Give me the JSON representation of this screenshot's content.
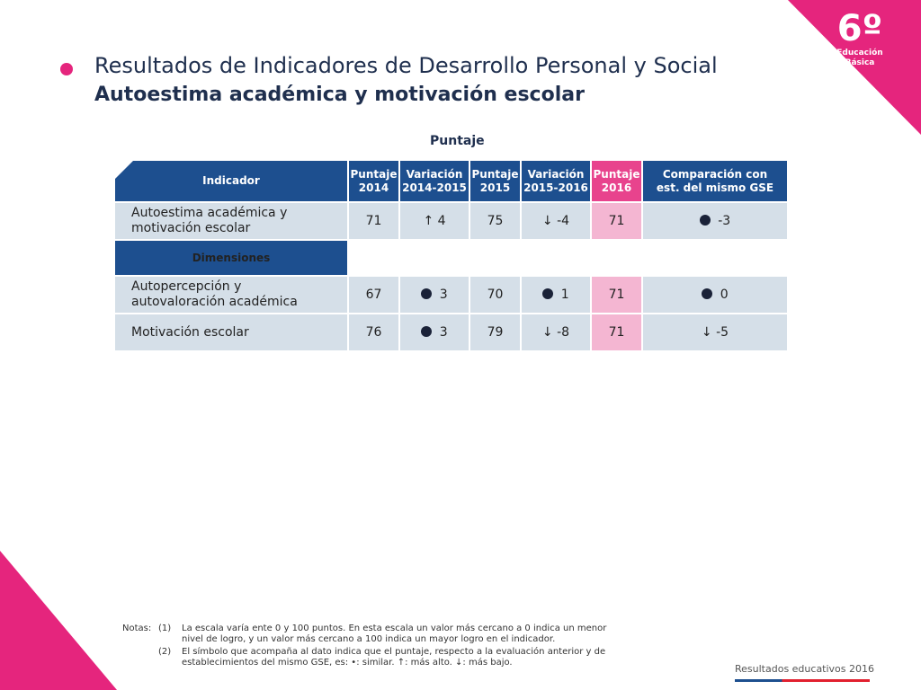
{
  "badge": {
    "grade": "6º",
    "level_line1": "Educación",
    "level_line2": "Básica"
  },
  "title": {
    "line1": "Resultados de Indicadores de Desarrollo Personal y Social",
    "line2": "Autoestima académica y motivación escolar"
  },
  "table": {
    "caption": "Puntaje",
    "headers": {
      "indicador": "Indicador",
      "p2014_a": "Puntaje",
      "p2014_b": "2014",
      "v1_a": "Variación",
      "v1_b": "2014-2015",
      "p2015_a": "Puntaje",
      "p2015_b": "2015",
      "v2_a": "Variación",
      "v2_b": "2015-2016",
      "p2016_a": "Puntaje",
      "p2016_b": "2016",
      "comp_a": "Comparación con",
      "comp_b": "est. del mismo GSE"
    },
    "main_row": {
      "label_a": "Autoestima académica y",
      "label_b": "motivación escolar",
      "p2014": "71",
      "v1_symbol": "↑",
      "v1": "4",
      "p2015": "75",
      "v2_symbol": "↓",
      "v2": "-4",
      "p2016": "71",
      "comp_symbol": "dot",
      "comp": "-3"
    },
    "dimensions_label": "Dimensiones",
    "rows": [
      {
        "label_a": "Autopercepción y",
        "label_b": "autovaloración académica",
        "p2014": "67",
        "v1_symbol": "dot",
        "v1": "3",
        "p2015": "70",
        "v2_symbol": "dot",
        "v2": "1",
        "p2016": "71",
        "comp_symbol": "dot",
        "comp": "0"
      },
      {
        "label_a": "Motivación escolar",
        "label_b": "",
        "p2014": "76",
        "v1_symbol": "dot",
        "v1": "3",
        "p2015": "79",
        "v2_symbol": "↓",
        "v2": "-8",
        "p2016": "71",
        "comp_symbol": "↓",
        "comp": "-5"
      }
    ]
  },
  "notes": {
    "label": "Notas:",
    "n1": "(1)",
    "t1a": "La escala varía ente 0 y 100 puntos. En esta escala un valor más cercano a 0 indica un menor",
    "t1b": "nivel de logro, y un valor más cercano a 100 indica un mayor logro en el indicador.",
    "n2": "(2)",
    "t2a": "El símbolo que acompaña al dato indica que el puntaje, respecto a la evaluación anterior y de",
    "t2b": "establecimientos del mismo GSE, es:     •: similar.                     ↑: más alto.               ↓: más bajo."
  },
  "footer": {
    "brand": "Resultados educativos 2016"
  },
  "colors": {
    "pink": "#e5257d",
    "navy": "#1d4f8f",
    "cell": "#d5dfe8",
    "pink_cell": "#f4b6d2"
  }
}
